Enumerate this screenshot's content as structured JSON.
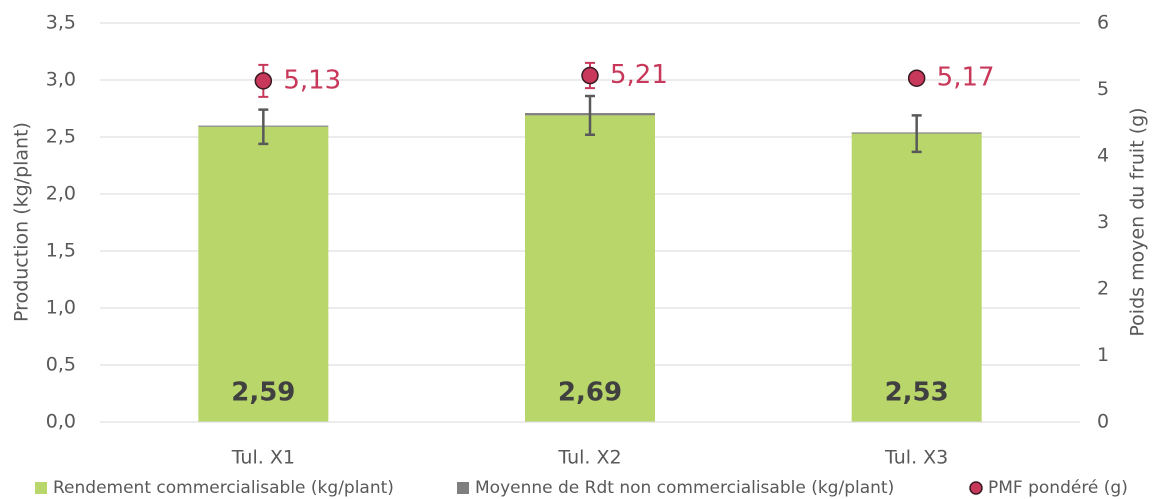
{
  "chart_data": {
    "type": "bar",
    "categories": [
      "Tul. X1",
      "Tul. X2",
      "Tul. X3"
    ],
    "y_label": "Production (kg/plant)",
    "y2_label": "Poids moyen du fruit (g)",
    "ylim": [
      0,
      3.5
    ],
    "yticks": [
      {
        "value": 0,
        "label": "0,0"
      },
      {
        "value": 0.5,
        "label": "0,5"
      },
      {
        "value": 1,
        "label": "1,0"
      },
      {
        "value": 1.5,
        "label": "1,5"
      },
      {
        "value": 2,
        "label": "2,0"
      },
      {
        "value": 2.5,
        "label": "2,5"
      },
      {
        "value": 3,
        "label": "3,0"
      },
      {
        "value": 3.5,
        "label": "3,5"
      }
    ],
    "y2lim": [
      0,
      6
    ],
    "y2ticks": [
      0,
      1,
      2,
      3,
      4,
      5,
      6
    ],
    "grid": true,
    "legend": "bottom",
    "series": [
      {
        "name": "Rendement commercialisable (kg/plant)",
        "type": "bar",
        "color": "#b8d66a",
        "values": [
          2.59,
          2.69,
          2.53
        ],
        "value_labels": [
          "2,59",
          "2,69",
          "2,53"
        ],
        "errors": [
          0.15,
          0.17,
          0.16
        ]
      },
      {
        "name": "Moyenne de Rdt non commercialisable (kg/plant)",
        "type": "bar",
        "color": "#7f7f7f",
        "values": [
          0.01,
          0.02,
          0.01
        ]
      },
      {
        "name": "PMF pondéré (g)",
        "type": "scatter",
        "axis": "y2",
        "color": "#c8385a",
        "values": [
          5.13,
          5.21,
          5.17
        ],
        "value_labels": [
          "5,13",
          "5,21",
          "5,17"
        ],
        "errors": [
          0.24,
          0.19,
          0
        ]
      }
    ]
  }
}
